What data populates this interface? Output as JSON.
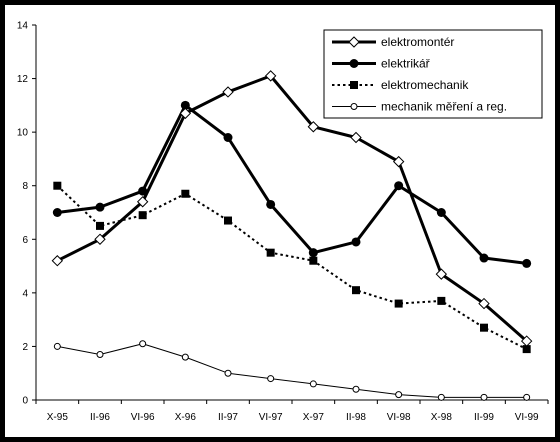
{
  "chart_data": {
    "type": "line",
    "title": "",
    "xlabel": "",
    "ylabel": "",
    "categories": [
      "X-95",
      "II-96",
      "VI-96",
      "X-96",
      "II-97",
      "VI-97",
      "X-97",
      "II-98",
      "VI-98",
      "X-98",
      "II-99",
      "VI-99"
    ],
    "ylim": [
      0,
      14
    ],
    "yticks": [
      0,
      2,
      4,
      6,
      8,
      10,
      12,
      14
    ],
    "grid": false,
    "legend_position": "top-right",
    "series": [
      {
        "name": "elektromontér",
        "marker": "diamond-open",
        "line": "solid-thick",
        "values": [
          5.2,
          6.0,
          7.4,
          10.7,
          11.5,
          12.1,
          10.2,
          9.8,
          8.9,
          4.7,
          3.6,
          2.2
        ]
      },
      {
        "name": "elektrikář",
        "marker": "circle-filled",
        "line": "solid-thick",
        "values": [
          7.0,
          7.2,
          7.8,
          11.0,
          9.8,
          7.3,
          5.5,
          5.9,
          8.0,
          7.0,
          5.3,
          5.1
        ]
      },
      {
        "name": "elektromechanik",
        "marker": "square-filled",
        "line": "dotted",
        "values": [
          8.0,
          6.5,
          6.9,
          7.7,
          6.7,
          5.5,
          5.2,
          4.1,
          3.6,
          3.7,
          2.7,
          1.9
        ]
      },
      {
        "name": "mechanik měření a reg.",
        "marker": "circle-open",
        "line": "solid-thin",
        "values": [
          2.0,
          1.7,
          2.1,
          1.6,
          1.0,
          0.8,
          0.6,
          0.4,
          0.2,
          0.1,
          0.1,
          0.1
        ]
      }
    ]
  },
  "colors": {
    "frame": "#000000",
    "plot_background": "#ffffff",
    "line": "#000000"
  }
}
